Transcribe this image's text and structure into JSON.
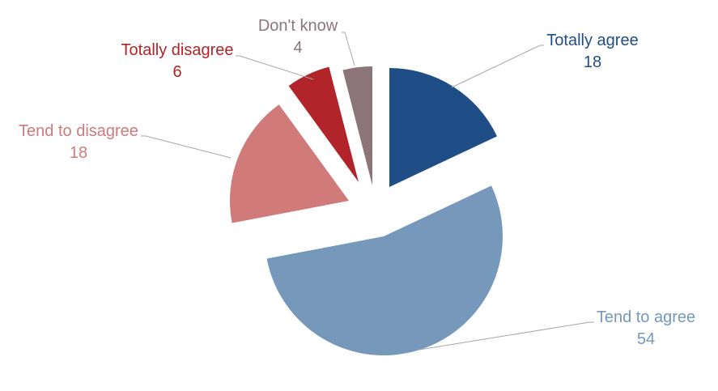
{
  "chart_data": {
    "type": "pie",
    "style": "exploded",
    "title": "",
    "slices": [
      {
        "label": "Totally agree",
        "value": 18,
        "value_label": "18",
        "color": "#1f4e86",
        "label_color": "#1f4e86"
      },
      {
        "label": "Tend to agree",
        "value": 54,
        "value_label": "54",
        "color": "#7598bb",
        "label_color": "#7598bb"
      },
      {
        "label": "Tend to disagree",
        "value": 18,
        "value_label": "18",
        "color": "#d07a7a",
        "label_color": "#d07a7a"
      },
      {
        "label": "Totally disagree",
        "value": 6,
        "value_label": "6",
        "color": "#b1242a",
        "label_color": "#b1242a"
      },
      {
        "label": "Don't know",
        "value": 4,
        "value_label": "4",
        "color": "#8b7579",
        "label_color": "#8b7579"
      }
    ]
  }
}
